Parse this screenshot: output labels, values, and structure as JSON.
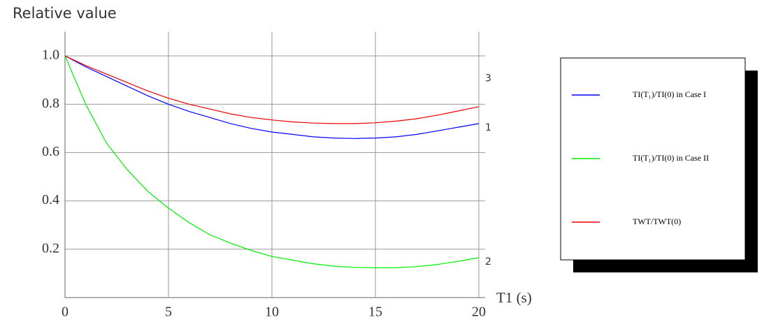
{
  "chart_data": {
    "type": "line",
    "title": "Relative value",
    "x_label": "T1 (s)",
    "x": [
      0,
      1,
      2,
      3,
      4,
      5,
      6,
      7,
      8,
      9,
      10,
      11,
      12,
      13,
      14,
      15,
      16,
      17,
      18,
      19,
      20
    ],
    "series": [
      {
        "name": "TI(T₁)/TI(0) in Case I",
        "color": "#0000ff",
        "end_label": "1",
        "values": [
          1.0,
          0.955,
          0.915,
          0.875,
          0.835,
          0.8,
          0.77,
          0.745,
          0.72,
          0.7,
          0.685,
          0.675,
          0.665,
          0.66,
          0.658,
          0.66,
          0.665,
          0.675,
          0.69,
          0.705,
          0.72
        ]
      },
      {
        "name": "TI(T₁)/TI(0) in Case II",
        "color": "#00ee00",
        "end_label": "2",
        "values": [
          1.0,
          0.8,
          0.64,
          0.53,
          0.44,
          0.37,
          0.31,
          0.26,
          0.225,
          0.195,
          0.17,
          0.155,
          0.14,
          0.13,
          0.125,
          0.123,
          0.123,
          0.128,
          0.137,
          0.15,
          0.165
        ]
      },
      {
        "name": "TWT/TWT(0)",
        "color": "#ee0000",
        "end_label": "3",
        "values": [
          1.0,
          0.96,
          0.925,
          0.89,
          0.855,
          0.825,
          0.8,
          0.78,
          0.76,
          0.745,
          0.735,
          0.727,
          0.722,
          0.72,
          0.72,
          0.723,
          0.73,
          0.74,
          0.755,
          0.772,
          0.79
        ]
      }
    ],
    "xlim": [
      0,
      20.3
    ],
    "ylim": [
      0,
      1.1
    ],
    "xticks": [
      0,
      5,
      10,
      15,
      20
    ],
    "yticks": [
      0.2,
      0.4,
      0.6,
      0.8,
      {
        "value": 1,
        "label": "1.0"
      }
    ],
    "grid": true,
    "legend": "right"
  }
}
